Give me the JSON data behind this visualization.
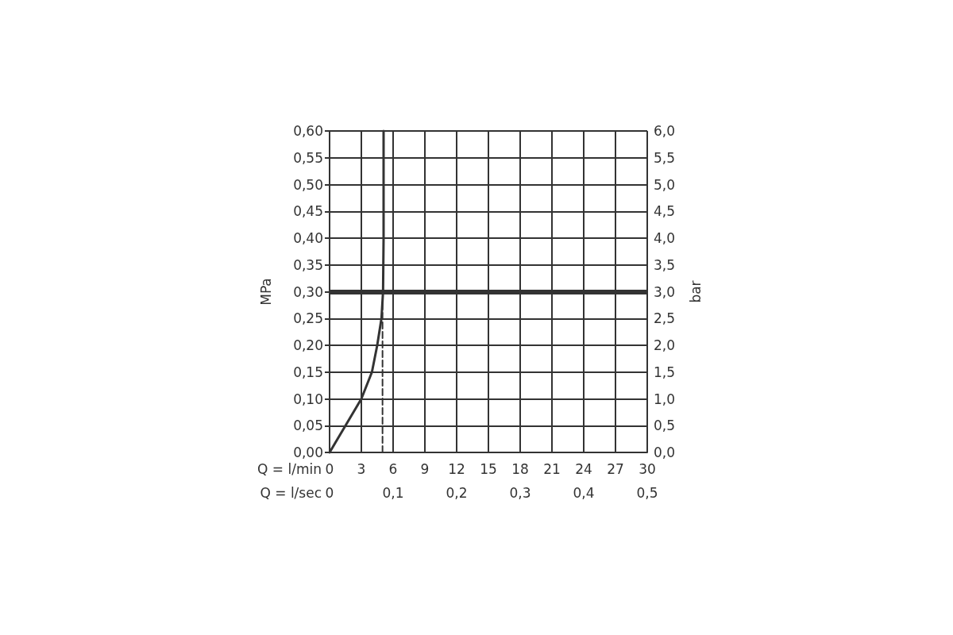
{
  "chart_data": {
    "type": "line",
    "xlabel": "Q = l/min",
    "x2label": "Q = l/sec",
    "ylabel": "MPa",
    "y2label": "bar",
    "xlim": [
      0,
      30
    ],
    "xticks": [
      0,
      3,
      6,
      9,
      12,
      15,
      18,
      21,
      24,
      27,
      30
    ],
    "x2lim": [
      0,
      0.5
    ],
    "x2ticks": [
      0,
      {
        "value": 0.1,
        "label": "0,1"
      },
      {
        "value": 0.2,
        "label": "0,2"
      },
      {
        "value": 0.3,
        "label": "0,3"
      },
      {
        "value": 0.4,
        "label": "0,4"
      },
      {
        "value": 0.5,
        "label": "0,5"
      }
    ],
    "ylim": [
      0,
      0.6
    ],
    "yticks": [
      {
        "value": 0,
        "label": "0,00"
      },
      {
        "value": 0.05,
        "label": "0,05"
      },
      {
        "value": 0.1,
        "label": "0,10"
      },
      {
        "value": 0.15,
        "label": "0,15"
      },
      {
        "value": 0.2,
        "label": "0,20"
      },
      {
        "value": 0.25,
        "label": "0,25"
      },
      {
        "value": 0.3,
        "label": "0,30"
      },
      {
        "value": 0.35,
        "label": "0,35"
      },
      {
        "value": 0.4,
        "label": "0,40"
      },
      {
        "value": 0.45,
        "label": "0,45"
      },
      {
        "value": 0.5,
        "label": "0,50"
      },
      {
        "value": 0.55,
        "label": "0,55"
      },
      {
        "value": 0.6,
        "label": "0,60"
      }
    ],
    "y2lim": [
      0,
      6
    ],
    "y2ticks": [
      {
        "value": 0,
        "label": "0,0"
      },
      {
        "value": 0.5,
        "label": "0,5"
      },
      {
        "value": 1,
        "label": "1,0"
      },
      {
        "value": 1.5,
        "label": "1,5"
      },
      {
        "value": 2,
        "label": "2,0"
      },
      {
        "value": 2.5,
        "label": "2,5"
      },
      {
        "value": 3,
        "label": "3,0"
      },
      {
        "value": 3.5,
        "label": "3,5"
      },
      {
        "value": 4,
        "label": "4,0"
      },
      {
        "value": 4.5,
        "label": "4,5"
      },
      {
        "value": 5,
        "label": "5,0"
      },
      {
        "value": 5.5,
        "label": "5,5"
      },
      {
        "value": 6,
        "label": "6,0"
      }
    ],
    "grid": true,
    "marker": "none",
    "series": [
      {
        "color": "#333333",
        "line_style": "solid",
        "x": [
          0,
          1.5,
          3.0,
          4.0,
          4.5,
          4.9,
          5.05,
          5.1,
          5.1
        ],
        "values": [
          0,
          0.05,
          0.1,
          0.15,
          0.2,
          0.25,
          0.3,
          0.4,
          0.6
        ]
      },
      {
        "color": "#333333",
        "line_style": "dashed",
        "x": [
          5.0,
          5.0
        ],
        "values": [
          0,
          0.28
        ]
      }
    ],
    "ref_lines": [
      {
        "axis": "y",
        "value": 0.3,
        "label": null,
        "color": "#333333"
      }
    ]
  }
}
